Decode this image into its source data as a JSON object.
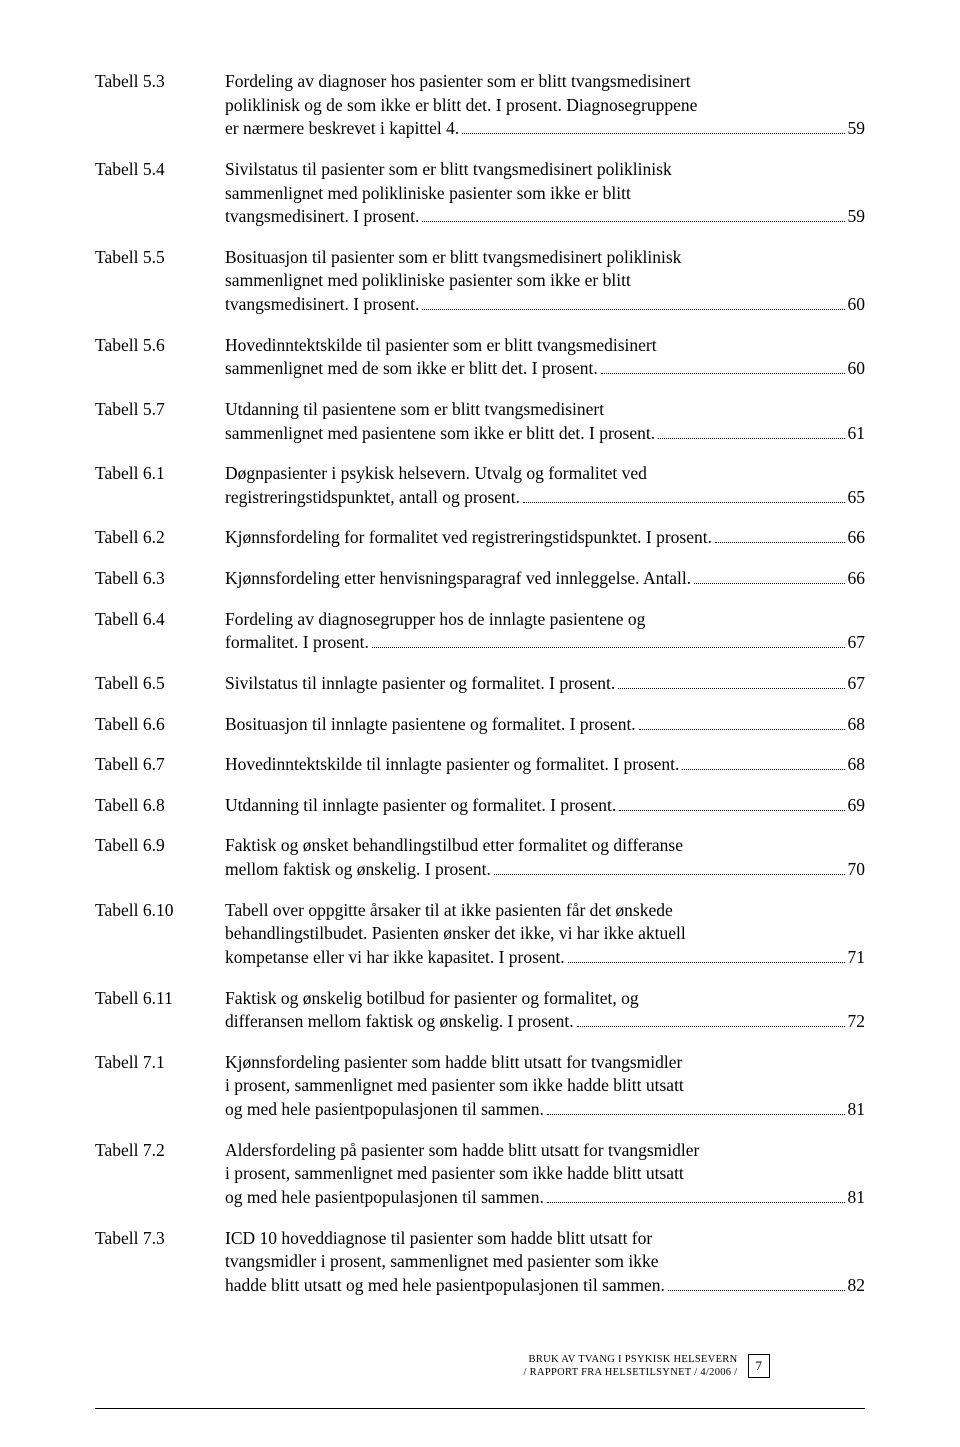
{
  "entries": [
    {
      "label": "Tabell 5.3",
      "lines": [
        {
          "text": "Fordeling av diagnoser hos pasienter som er blitt tvangsmedisinert",
          "dots": false,
          "page": ""
        },
        {
          "text": "poliklinisk og de som ikke er blitt det. I prosent. Diagnosegruppene",
          "dots": false,
          "page": ""
        },
        {
          "text": "er nærmere beskrevet i kapittel 4.",
          "dots": true,
          "page": "59"
        }
      ]
    },
    {
      "label": "Tabell 5.4",
      "lines": [
        {
          "text": "Sivilstatus til pasienter som er blitt tvangsmedisinert poliklinisk",
          "dots": false,
          "page": ""
        },
        {
          "text": "sammenlignet med polikliniske pasienter som ikke er blitt",
          "dots": false,
          "page": ""
        },
        {
          "text": "tvangsmedisinert. I prosent.",
          "dots": true,
          "page": "59"
        }
      ]
    },
    {
      "label": "Tabell 5.5",
      "lines": [
        {
          "text": "Bosituasjon til pasienter som er blitt tvangsmedisinert poliklinisk",
          "dots": false,
          "page": ""
        },
        {
          "text": "sammenlignet med polikliniske pasienter som ikke er blitt",
          "dots": false,
          "page": ""
        },
        {
          "text": "tvangsmedisinert. I prosent.",
          "dots": true,
          "page": "60"
        }
      ]
    },
    {
      "label": "Tabell 5.6",
      "lines": [
        {
          "text": "Hovedinntektskilde til pasienter som er blitt tvangsmedisinert",
          "dots": false,
          "page": ""
        },
        {
          "text": "sammenlignet med de som ikke er blitt det. I prosent. ",
          "dots": true,
          "page": "60"
        }
      ]
    },
    {
      "label": "Tabell 5.7",
      "lines": [
        {
          "text": "Utdanning til pasientene som er blitt tvangsmedisinert",
          "dots": false,
          "page": ""
        },
        {
          "text": "sammenlignet med pasientene som ikke er blitt det. I prosent.",
          "dots": true,
          "page": "61"
        }
      ]
    },
    {
      "label": "Tabell 6.1",
      "lines": [
        {
          "text": "Døgnpasienter i psykisk helsevern. Utvalg og formalitet ved",
          "dots": false,
          "page": ""
        },
        {
          "text": "registreringstidspunktet, antall og prosent. ",
          "dots": true,
          "page": "65"
        }
      ]
    },
    {
      "label": "Tabell 6.2",
      "lines": [
        {
          "text": "Kjønnsfordeling for formalitet ved registreringstidspunktet. I prosent.",
          "dots": true,
          "page": "66"
        }
      ]
    },
    {
      "label": "Tabell 6.3",
      "lines": [
        {
          "text": "Kjønnsfordeling etter henvisningsparagraf ved innleggelse. Antall.",
          "dots": true,
          "page": "66"
        }
      ]
    },
    {
      "label": "Tabell 6.4",
      "lines": [
        {
          "text": "Fordeling av diagnosegrupper hos de innlagte pasientene og",
          "dots": false,
          "page": ""
        },
        {
          "text": "formalitet. I prosent.",
          "dots": true,
          "page": "67"
        }
      ]
    },
    {
      "label": "Tabell 6.5",
      "lines": [
        {
          "text": "Sivilstatus til innlagte pasienter og formalitet. I prosent. ",
          "dots": true,
          "page": "67"
        }
      ]
    },
    {
      "label": "Tabell 6.6",
      "lines": [
        {
          "text": "Bosituasjon til innlagte pasientene og formalitet. I prosent.",
          "dots": true,
          "page": "68"
        }
      ]
    },
    {
      "label": "Tabell 6.7",
      "lines": [
        {
          "text": "Hovedinntektskilde til innlagte pasienter og formalitet. I prosent. ",
          "dots": true,
          "page": "68"
        }
      ]
    },
    {
      "label": "Tabell 6.8",
      "lines": [
        {
          "text": "Utdanning til innlagte pasienter og formalitet. I prosent. ",
          "dots": true,
          "page": "69"
        }
      ]
    },
    {
      "label": "Tabell 6.9",
      "lines": [
        {
          "text": "Faktisk og ønsket behandlingstilbud etter formalitet og differanse",
          "dots": false,
          "page": ""
        },
        {
          "text": "mellom faktisk og ønskelig. I prosent.",
          "dots": true,
          "page": "70"
        }
      ]
    },
    {
      "label": "Tabell 6.10",
      "lines": [
        {
          "text": "Tabell over oppgitte årsaker til at ikke pasienten får det ønskede",
          "dots": false,
          "page": ""
        },
        {
          "text": "behandlingstilbudet. Pasienten ønsker det ikke, vi har ikke aktuell",
          "dots": false,
          "page": ""
        },
        {
          "text": "kompetanse eller vi har ikke kapasitet. I prosent.",
          "dots": true,
          "page": "71"
        }
      ]
    },
    {
      "label": "Tabell 6.11",
      "lines": [
        {
          "text": "Faktisk og ønskelig botilbud for pasienter og formalitet, og",
          "dots": false,
          "page": ""
        },
        {
          "text": "differansen mellom faktisk og ønskelig. I prosent. ",
          "dots": true,
          "page": "72"
        }
      ]
    },
    {
      "label": "Tabell 7.1",
      "lines": [
        {
          "text": "Kjønnsfordeling pasienter som hadde blitt utsatt for tvangsmidler",
          "dots": false,
          "page": ""
        },
        {
          "text": "i prosent, sammenlignet med pasienter som ikke hadde blitt utsatt",
          "dots": false,
          "page": ""
        },
        {
          "text": "og med hele pasientpopulasjonen til sammen. ",
          "dots": true,
          "page": "81"
        }
      ]
    },
    {
      "label": "Tabell 7.2",
      "lines": [
        {
          "text": "Aldersfordeling på pasienter som hadde blitt utsatt for tvangsmidler",
          "dots": false,
          "page": ""
        },
        {
          "text": "i prosent, sammenlignet med pasienter som ikke hadde blitt utsatt",
          "dots": false,
          "page": ""
        },
        {
          "text": "og med hele pasientpopulasjonen til sammen.",
          "dots": true,
          "page": "81"
        }
      ]
    },
    {
      "label": "Tabell 7.3",
      "lines": [
        {
          "text": "ICD 10 hoveddiagnose til pasienter som hadde blitt utsatt for",
          "dots": false,
          "page": ""
        },
        {
          "text": "tvangsmidler i prosent, sammenlignet med pasienter som ikke",
          "dots": false,
          "page": ""
        },
        {
          "text": "hadde blitt utsatt og med hele pasientpopulasjonen til sammen. ",
          "dots": true,
          "page": "82"
        }
      ]
    }
  ],
  "footer": {
    "line1": "BRUK AV TVANG I PSYKISK HELSEVERN",
    "line2": "/ RAPPORT FRA HELSETILSYNET / 4/2006 /",
    "page": "7"
  }
}
